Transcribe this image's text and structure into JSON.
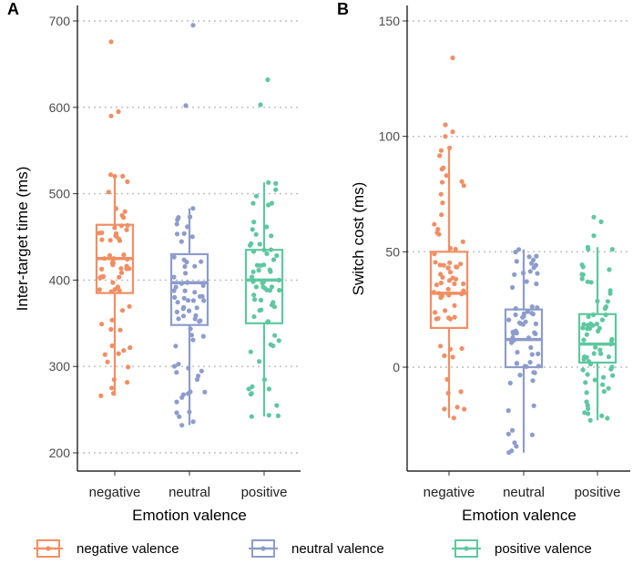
{
  "colors": {
    "negative": "#f28e63",
    "neutral": "#8d9ccc",
    "positive": "#5fc7a0"
  },
  "chart_data": [
    {
      "type": "boxplot",
      "panel_label": "A",
      "xlabel": "Emotion valence",
      "ylabel": "Inter-target time (ms)",
      "categories": [
        "negative",
        "neutral",
        "positive"
      ],
      "ylim": [
        185,
        715
      ],
      "yticks": [
        200,
        300,
        400,
        500,
        600,
        700
      ],
      "y_tick_labels": [
        "200",
        "300",
        "400",
        "500",
        "600",
        "700"
      ],
      "grid": "horizontal-dotted",
      "boxes": [
        {
          "category": "negative",
          "whisker_low": 266,
          "q1": 385,
          "median": 425,
          "q3": 464,
          "whisker_high": 522
        },
        {
          "category": "neutral",
          "whisker_low": 232,
          "q1": 348,
          "median": 397,
          "q3": 430,
          "whisker_high": 483
        },
        {
          "category": "positive",
          "whisker_low": 242,
          "q1": 350,
          "median": 400,
          "q3": 435,
          "whisker_high": 513
        }
      ],
      "outliers": [
        {
          "category": "negative",
          "values": [
            590,
            595,
            676
          ]
        },
        {
          "category": "neutral",
          "values": [
            602,
            695
          ]
        },
        {
          "category": "positive",
          "values": [
            603,
            632
          ]
        }
      ]
    },
    {
      "type": "boxplot",
      "panel_label": "B",
      "xlabel": "Emotion valence",
      "ylabel": "Switch cost (ms)",
      "categories": [
        "negative",
        "neutral",
        "positive"
      ],
      "ylim": [
        -45,
        158
      ],
      "yticks": [
        0,
        50,
        100,
        150
      ],
      "y_tick_labels": [
        "0",
        "50",
        "100",
        "150"
      ],
      "grid": "horizontal-dotted",
      "boxes": [
        {
          "category": "negative",
          "whisker_low": -22,
          "q1": 17,
          "median": 32,
          "q3": 50,
          "whisker_high": 95
        },
        {
          "category": "neutral",
          "whisker_low": -37,
          "q1": 0,
          "median": 12,
          "q3": 25,
          "whisker_high": 51
        },
        {
          "category": "positive",
          "whisker_low": -23,
          "q1": 2,
          "median": 10,
          "q3": 23,
          "whisker_high": 52
        }
      ],
      "outliers": [
        {
          "category": "negative",
          "values": [
            100,
            102,
            105,
            134
          ]
        },
        {
          "category": "neutral",
          "values": []
        },
        {
          "category": "positive",
          "values": [
            57,
            63,
            65
          ]
        }
      ]
    }
  ],
  "legend": {
    "items": [
      {
        "key": "negative",
        "label": "negative valence"
      },
      {
        "key": "neutral",
        "label": "neutral valence"
      },
      {
        "key": "positive",
        "label": "positive valence"
      }
    ]
  }
}
